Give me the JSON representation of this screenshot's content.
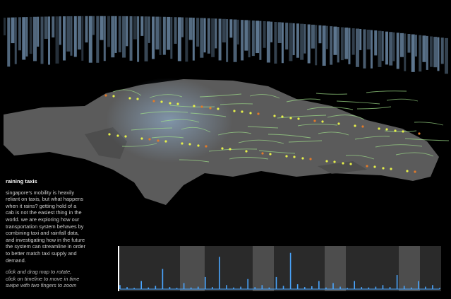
{
  "panel": {
    "title": "raining taxis",
    "paragraph": [
      "singapore's mobility is heavily",
      "reliant on taxis, but what happens",
      "when it rains? getting hold of a",
      "cab is not the easiest thing in the",
      "world. we are exploring how our",
      "transportation system behaves by",
      "combining taxi and rainfall data,",
      "and investigating how in the future",
      "the system can streamline in order",
      "to better match taxi supply and",
      "demand."
    ],
    "instructions": [
      "click and drag map to rotate,",
      "click on timeline to move in time",
      "swipe with two fingers to zoom"
    ]
  },
  "timeline": {
    "ylim": [
      0,
      10
    ],
    "values": [
      1,
      0.5,
      0.3,
      2,
      0.4,
      0.8,
      5,
      0.5,
      0.3,
      1.5,
      0.4,
      0.6,
      3,
      0.5,
      8,
      1,
      0.4,
      0.6,
      2.5,
      0.5,
      1,
      0.4,
      3,
      0.8,
      9,
      1.2,
      0.5,
      0.7,
      2,
      0.4,
      1.5,
      0.6,
      0.3,
      2,
      0.5,
      0.4,
      0.6,
      1,
      0.5,
      3.5,
      0.8,
      0.4,
      2,
      0.6,
      1,
      0.3
    ]
  }
}
